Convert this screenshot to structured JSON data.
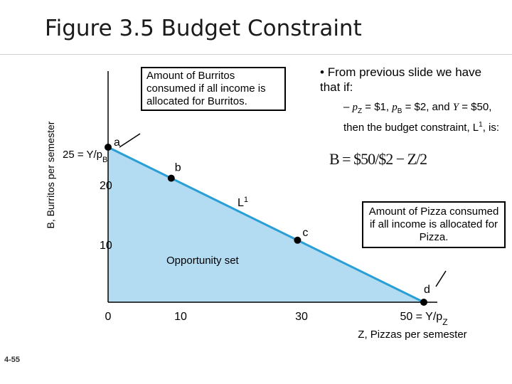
{
  "slide": {
    "title": "Figure 3.5 Budget Constraint",
    "slide_number": "4-55"
  },
  "bullets": {
    "main": "From previous slide we have that if:",
    "sub_dash": "–",
    "sub_pz": "p",
    "sub_pz_sub": "Z",
    "sub_part1": " = $1, ",
    "sub_pb": "p",
    "sub_pb_sub": "B",
    "sub_part2": " = $2, and ",
    "sub_Y": "Y",
    "sub_part3": " = $50, then the budget constraint, L",
    "sub_sup": "1",
    "sub_part4": ", is:",
    "formula": "B = $50/$2 − Z/2"
  },
  "callouts": {
    "burritos": "Amount of Burritos consumed if all income is allocated for Burritos.",
    "pizza": "Amount of Pizza consumed if all income is allocated for Pizza."
  },
  "chart_data": {
    "type": "area",
    "ylabel": "B, Burritos per semester",
    "xlabel": "Z, Pizzas per semester",
    "xlim": [
      0,
      50
    ],
    "ylim": [
      0,
      25
    ],
    "line": {
      "name": "L1",
      "points": [
        [
          0,
          25
        ],
        [
          50,
          0
        ]
      ]
    },
    "region_label": "Opportunity set",
    "points": [
      {
        "label": "a",
        "x": 0,
        "y": 25
      },
      {
        "label": "b",
        "x": 10,
        "y": 20
      },
      {
        "label": "c",
        "x": 30,
        "y": 10
      },
      {
        "label": "d",
        "x": 50,
        "y": 0
      }
    ],
    "x_ticks": [
      "0",
      "10",
      "30",
      "50 = Y/pZ"
    ],
    "y_ticks": [
      "10",
      "20",
      "25 = Y/pB"
    ],
    "colors": {
      "fill": "#b3dcf3",
      "line": "#2a9fd6"
    }
  }
}
